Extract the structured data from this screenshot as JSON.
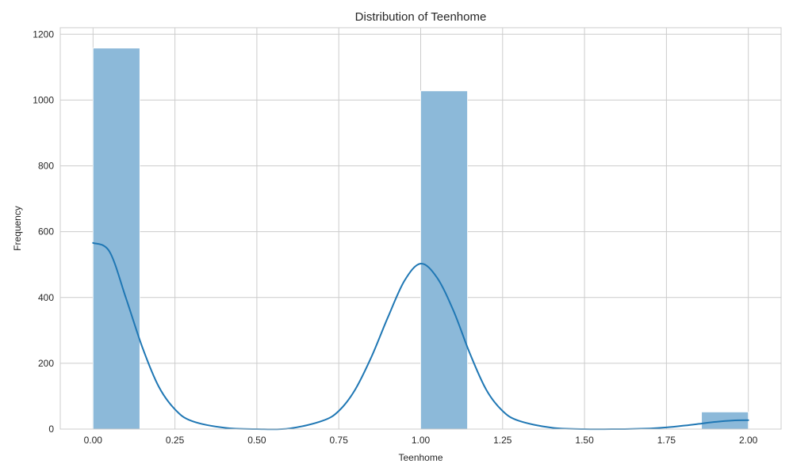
{
  "chart_data": {
    "type": "bar",
    "title": "Distribution of Teenhome",
    "xlabel": "Teenhome",
    "ylabel": "Frequency",
    "xlim": [
      -0.1,
      2.1
    ],
    "ylim": [
      0,
      1220
    ],
    "xticks": [
      "0.00",
      "0.25",
      "0.50",
      "0.75",
      "1.00",
      "1.25",
      "1.50",
      "1.75",
      "2.00"
    ],
    "yticks": [
      "0",
      "200",
      "400",
      "600",
      "800",
      "1000",
      "1200"
    ],
    "grid": true,
    "bars": [
      {
        "x0": 0.0,
        "x1": 0.142857,
        "value": 1158
      },
      {
        "x0": 1.0,
        "x1": 1.142857,
        "value": 1028
      },
      {
        "x0": 1.857143,
        "x1": 2.0,
        "value": 52
      }
    ],
    "kde": {
      "x": [
        0.0,
        0.05,
        0.1,
        0.15,
        0.2,
        0.25,
        0.3,
        0.4,
        0.5,
        0.6,
        0.7,
        0.75,
        0.8,
        0.85,
        0.9,
        0.95,
        1.0,
        1.05,
        1.1,
        1.15,
        1.2,
        1.25,
        1.3,
        1.4,
        1.5,
        1.6,
        1.7,
        1.75,
        1.8,
        1.85,
        1.9,
        1.95,
        2.0
      ],
      "y": [
        566,
        540,
        400,
        250,
        130,
        60,
        25,
        4,
        0,
        2,
        25,
        55,
        120,
        220,
        340,
        450,
        503,
        460,
        360,
        230,
        120,
        55,
        25,
        4,
        0,
        0,
        2,
        5,
        10,
        16,
        22,
        26,
        27
      ]
    },
    "colors": {
      "bar": "#8cb9d9",
      "kde": "#1f77b4"
    }
  }
}
